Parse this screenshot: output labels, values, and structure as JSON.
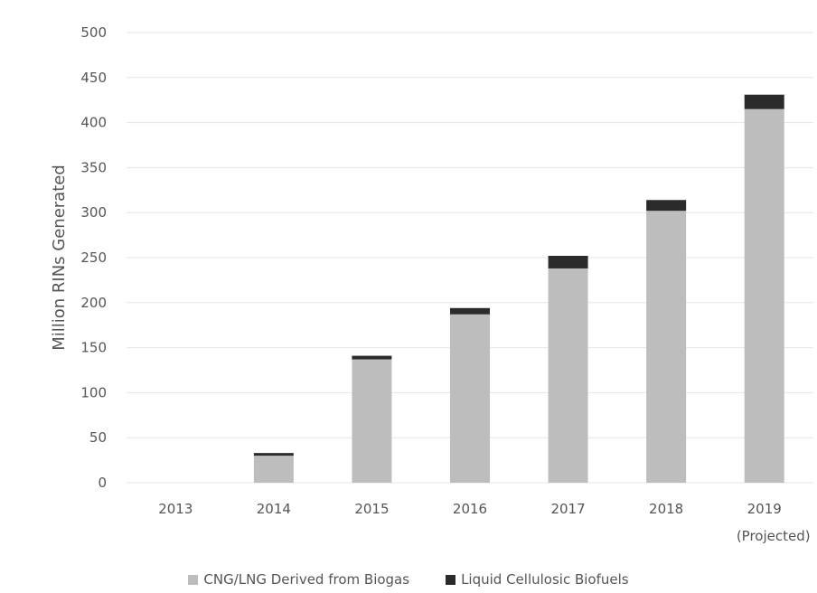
{
  "chart_data": {
    "type": "bar",
    "stacked": true,
    "categories": [
      "2013",
      "2014",
      "2015",
      "2016",
      "2017",
      "2018",
      "2019"
    ],
    "category_sublabels": [
      "",
      "",
      "",
      "",
      "",
      "",
      "(Projected)"
    ],
    "series": [
      {
        "name": "CNG/LNG Derived from Biogas",
        "color": "#bdbdbd",
        "values": [
          0,
          30,
          137,
          187,
          238,
          302,
          415
        ]
      },
      {
        "name": "Liquid Cellulosic Biofuels",
        "color": "#2b2b2b",
        "values": [
          0,
          3,
          4,
          7,
          14,
          12,
          16
        ]
      }
    ],
    "xlabel": "",
    "ylabel": "Million RINs Generated",
    "ylim": [
      0,
      500
    ],
    "yticks": [
      0,
      50,
      100,
      150,
      200,
      250,
      300,
      350,
      400,
      450,
      500
    ],
    "grid": true,
    "legend_position": "bottom"
  }
}
